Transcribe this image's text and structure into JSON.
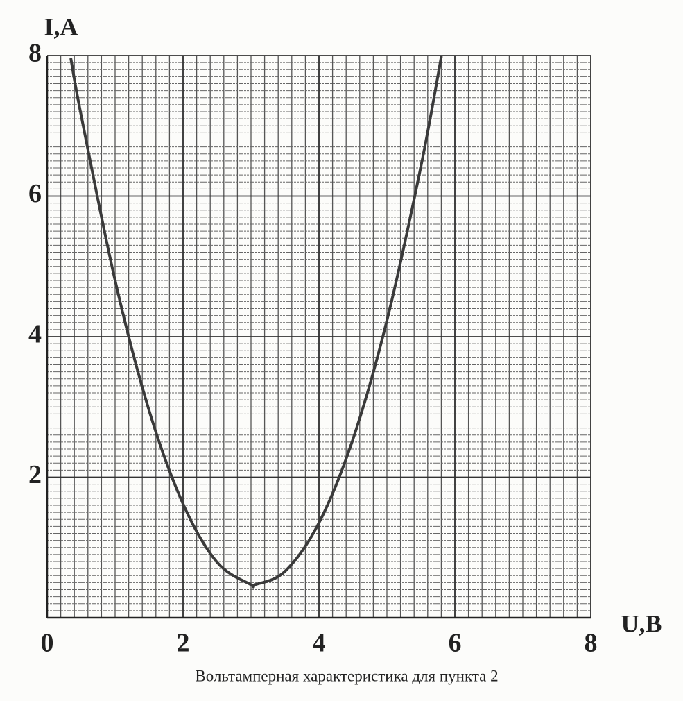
{
  "chart_data": {
    "type": "line",
    "caption": "Вольтамперная характеристика для пункта 2",
    "x_label": "U,B",
    "y_label": "I,A",
    "x": [
      0.35,
      0.5,
      1.0,
      1.5,
      2.0,
      2.5,
      3.0,
      3.06,
      3.5,
      4.0,
      4.5,
      5.0,
      5.5,
      5.8
    ],
    "values": [
      7.95,
      7.15,
      4.8,
      2.95,
      1.62,
      0.79,
      0.47,
      0.47,
      0.66,
      1.35,
      2.54,
      4.23,
      6.42,
      7.98
    ],
    "color": "#3a3a3a",
    "xlim": [
      0,
      8
    ],
    "ylim": [
      0,
      8
    ],
    "xticks": [
      0,
      2,
      4,
      6,
      8
    ],
    "yticks": [
      2,
      4,
      6,
      8
    ],
    "grid": true,
    "minor_grid": {
      "x": 0.2,
      "y": 0.1
    }
  }
}
